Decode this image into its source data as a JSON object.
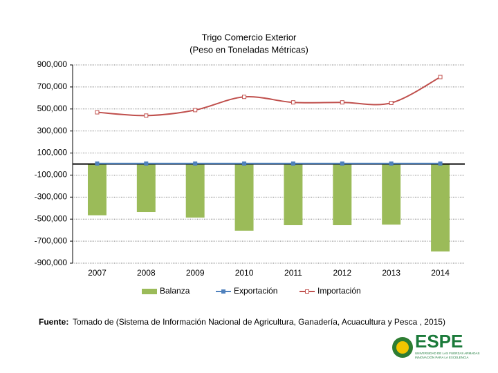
{
  "chart_data": {
    "type": "bar",
    "title": "Trigo Comercio Exterior",
    "subtitle": "(Peso en Toneladas Métricas)",
    "categories": [
      "2007",
      "2008",
      "2009",
      "2010",
      "2011",
      "2012",
      "2013",
      "2014"
    ],
    "series": [
      {
        "name": "Balanza",
        "type": "bar",
        "color": "#9bbb59",
        "values": [
          -465000,
          -436000,
          -486000,
          -605000,
          -555000,
          -555000,
          -550000,
          -794000
        ]
      },
      {
        "name": "Exportación",
        "type": "line",
        "color": "#4f81bd",
        "values": [
          5000,
          5000,
          5000,
          5000,
          5000,
          5000,
          5000,
          5000
        ]
      },
      {
        "name": "Importación",
        "type": "line",
        "color": "#c0504d",
        "values": [
          470000,
          440000,
          490000,
          610000,
          560000,
          560000,
          555000,
          790000
        ]
      }
    ],
    "ylim": [
      -900000,
      900000
    ],
    "yticks": [
      {
        "value": -900000,
        "label": "-900,000"
      },
      {
        "value": -700000,
        "label": "-700,000"
      },
      {
        "value": -500000,
        "label": "-500,000"
      },
      {
        "value": -300000,
        "label": "-300,000"
      },
      {
        "value": -100000,
        "label": "-100,000"
      },
      {
        "value": 100000,
        "label": "100,000"
      },
      {
        "value": 300000,
        "label": "300,000"
      },
      {
        "value": 500000,
        "label": "500,000"
      },
      {
        "value": 700000,
        "label": "700,000"
      },
      {
        "value": 900000,
        "label": "900,000"
      }
    ],
    "grid": true,
    "legend": "bottom"
  },
  "source_label": "Fuente:",
  "source": "Tomado de (Sistema de Información Nacional de Agricultura, Ganadería, Acuacultura y Pesca , 2015)",
  "logo": {
    "name": "ESPE",
    "line1": "UNIVERSIDAD DE LAS FUERZAS ARMADAS",
    "line2": "INNOVACIÓN PARA LA EXCELENCIA"
  }
}
